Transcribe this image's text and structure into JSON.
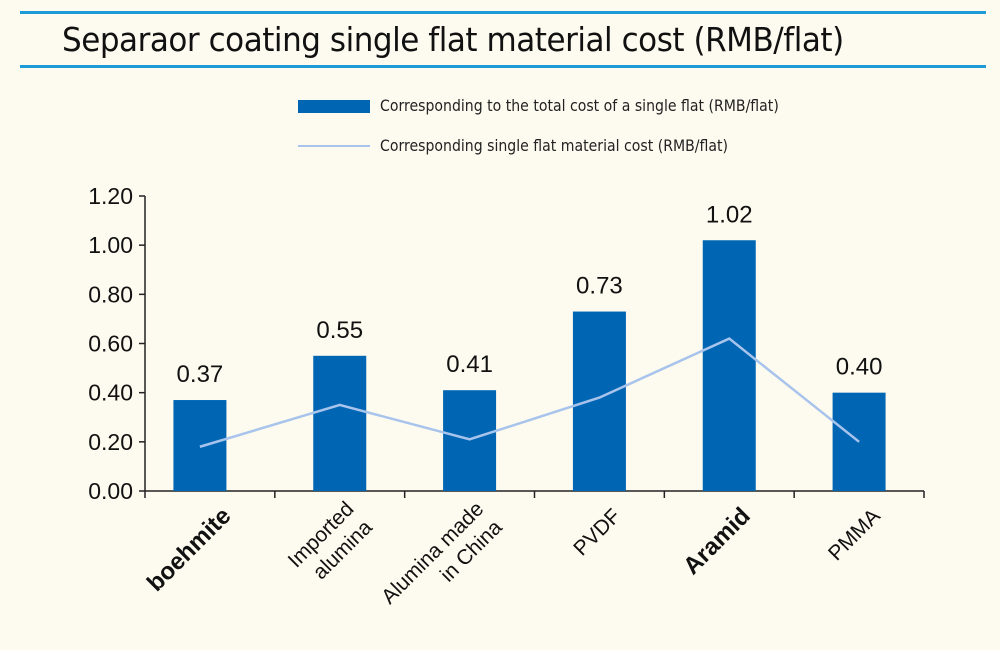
{
  "chart_data": {
    "type": "bar",
    "title": "Separaor coating single flat material cost (RMB/flat)",
    "categories": [
      "boehmite",
      "Imported alumina",
      "Alumina made in China",
      "PVDF",
      "Aramid",
      "PMMA"
    ],
    "category_lines": [
      [
        "boehmite"
      ],
      [
        "Imported",
        "alumina"
      ],
      [
        "Alumina made",
        "in China"
      ],
      [
        "PVDF"
      ],
      [
        "Aramid"
      ],
      [
        "PMMA"
      ]
    ],
    "series": [
      {
        "name": "Corresponding to the total cost of a single flat (RMB/flat)",
        "type": "bar",
        "color": "#0066b3",
        "values": [
          0.37,
          0.55,
          0.41,
          0.73,
          1.02,
          0.4
        ],
        "labels": [
          "0.37",
          "0.55",
          "0.41",
          "0.73",
          "1.02",
          "0.40"
        ]
      },
      {
        "name": "Corresponding single flat material cost (RMB/flat)",
        "type": "line",
        "color": "#a9c4ec",
        "values": [
          0.18,
          0.35,
          0.21,
          0.38,
          0.62,
          0.2
        ]
      }
    ],
    "ylim": [
      0,
      1.2
    ],
    "yticks": [
      "0.00",
      "0.20",
      "0.40",
      "0.60",
      "0.80",
      "1.00",
      "1.20"
    ],
    "grid": false,
    "legend_position": "top-right",
    "accent_colors": {
      "rule": "#1e9ad6",
      "background": "#fdfbef"
    }
  }
}
